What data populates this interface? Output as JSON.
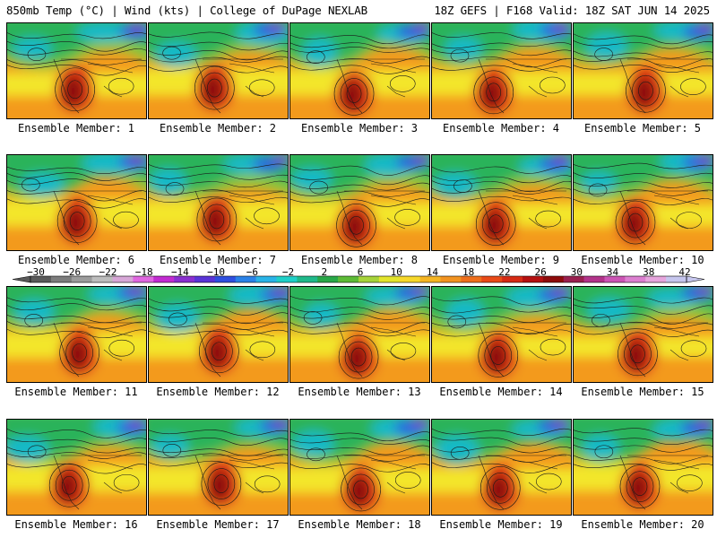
{
  "header": {
    "left_title": "850mb Temp (°C) | Wind (kts) | College of DuPage NEXLAB",
    "right_title": "18Z GEFS | F168 Valid: 18Z SAT JUN 14 2025"
  },
  "map": {
    "field": "850mb Temp",
    "colors": {
      "cold_deep": "#7a2cc8",
      "cold": "#2c5fe0",
      "cool": "#17b9c7",
      "mild": "#2ab35a",
      "warm_green": "#8cc83a",
      "yellow": "#f3e629",
      "orange": "#f39a1d",
      "hot": "#e03a17",
      "very_hot": "#8b0f0f",
      "contour": "#1a1a1a",
      "ocean_frame": "#ffffff"
    }
  },
  "panels": [
    {
      "label": "Ensemble Member: 1"
    },
    {
      "label": "Ensemble Member: 2"
    },
    {
      "label": "Ensemble Member: 3"
    },
    {
      "label": "Ensemble Member: 4"
    },
    {
      "label": "Ensemble Member: 5"
    },
    {
      "label": "Ensemble Member: 6"
    },
    {
      "label": "Ensemble Member: 7"
    },
    {
      "label": "Ensemble Member: 8"
    },
    {
      "label": "Ensemble Member: 9"
    },
    {
      "label": "Ensemble Member: 10"
    },
    {
      "label": "Ensemble Member: 11"
    },
    {
      "label": "Ensemble Member: 12"
    },
    {
      "label": "Ensemble Member: 13"
    },
    {
      "label": "Ensemble Member: 14"
    },
    {
      "label": "Ensemble Member: 15"
    },
    {
      "label": "Ensemble Member: 16"
    },
    {
      "label": "Ensemble Member: 17"
    },
    {
      "label": "Ensemble Member: 18"
    },
    {
      "label": "Ensemble Member: 19"
    },
    {
      "label": "Ensemble Member: 20"
    }
  ],
  "colorbar": {
    "ticks": [
      "−30",
      "−26",
      "−22",
      "−18",
      "−14",
      "−10",
      "−6",
      "−2",
      "2",
      "6",
      "10",
      "14",
      "18",
      "22",
      "26",
      "30",
      "34",
      "38",
      "42"
    ],
    "colors": [
      "#5a5a5a",
      "#7d7d7d",
      "#9c9c9c",
      "#bdbdbd",
      "#d7a7d7",
      "#e067e0",
      "#c22bd1",
      "#8a2fd0",
      "#5a34d6",
      "#2f4fe0",
      "#2a82e8",
      "#29b4e8",
      "#1fd0c8",
      "#1fb98a",
      "#28a848",
      "#5dbb36",
      "#a6d33a",
      "#e3e52c",
      "#f7d82a",
      "#f5b522",
      "#f29320",
      "#ef6f1c",
      "#e94a17",
      "#d62a14",
      "#b51010",
      "#8e0b0b",
      "#9a1f4f",
      "#b2338a",
      "#cc55b5",
      "#dc7fd0",
      "#e6a5dd",
      "#c6c6ee"
    ]
  }
}
